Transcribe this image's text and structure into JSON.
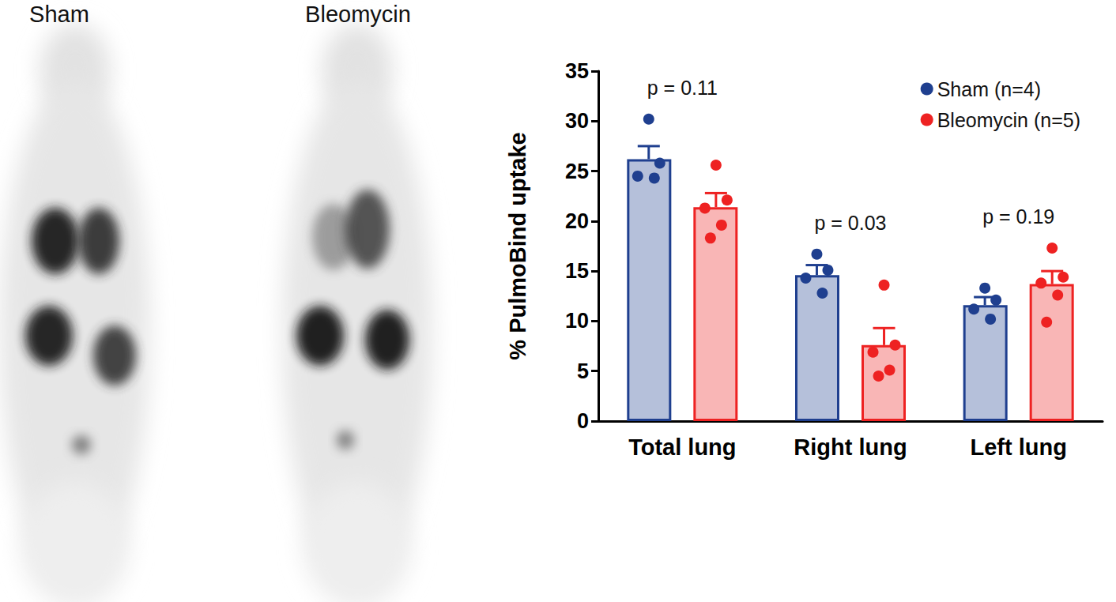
{
  "images": [
    {
      "title": "Sham"
    },
    {
      "title": "Bleomycin"
    }
  ],
  "chart_data": {
    "type": "bar",
    "y_label": "% PulmoBind uptake",
    "categories": [
      "Total lung",
      "Right lung",
      "Left lung"
    ],
    "series": [
      {
        "name": "Sham (n=4)",
        "color": "#1f3f8f",
        "values": [
          26.2,
          14.6,
          11.6
        ],
        "errors": [
          1.3,
          1.0,
          0.8
        ],
        "points": [
          [
            30.2,
            25.8,
            24.5,
            24.3
          ],
          [
            16.7,
            15.1,
            14.3,
            12.8
          ],
          [
            13.3,
            12.1,
            11.2,
            10.2
          ]
        ]
      },
      {
        "name": "Bleomycin (n=5)",
        "color": "#ee2222",
        "values": [
          21.4,
          7.6,
          13.7
        ],
        "errors": [
          1.4,
          1.7,
          1.3
        ],
        "points": [
          [
            25.6,
            22.1,
            21.3,
            19.6,
            18.3
          ],
          [
            13.6,
            7.6,
            6.9,
            5.1,
            4.5
          ],
          [
            17.3,
            14.4,
            13.8,
            12.6,
            9.9
          ]
        ]
      }
    ],
    "annotations": [
      {
        "category": "Total lung",
        "text": "p = 0.11"
      },
      {
        "category": "Right lung",
        "text": "p = 0.03"
      },
      {
        "category": "Left lung",
        "text": "p = 0.19"
      }
    ],
    "ylim": [
      0,
      35
    ],
    "yticks": [
      0,
      5,
      10,
      15,
      20,
      25,
      30,
      35
    ],
    "grid": false,
    "legend": "upper right"
  }
}
